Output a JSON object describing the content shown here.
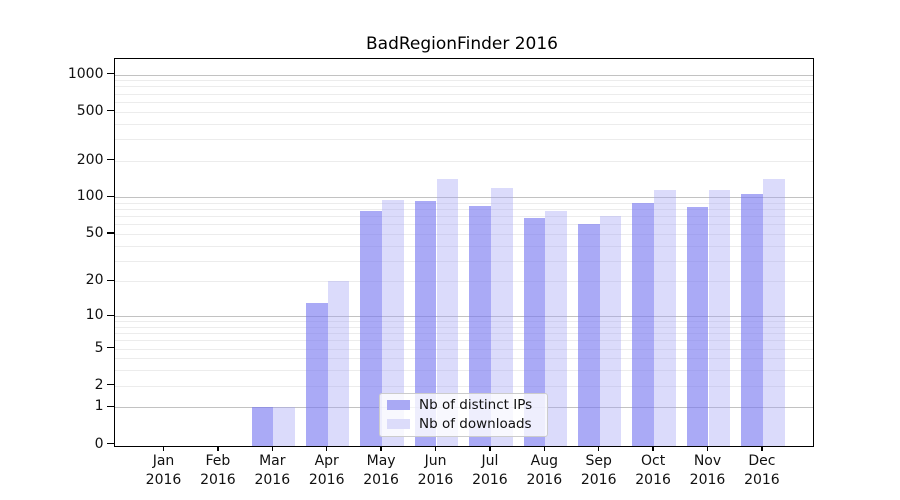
{
  "chart_data": {
    "type": "bar",
    "title": "BadRegionFinder 2016",
    "months": [
      "Jan",
      "Feb",
      "Mar",
      "Apr",
      "May",
      "Jun",
      "Jul",
      "Aug",
      "Sep",
      "Oct",
      "Nov",
      "Dec"
    ],
    "year": "2016",
    "series": [
      {
        "name": "Nb of distinct IPs",
        "fill_rgba": "rgba(120,120,240,0.63)",
        "swatch_hex": "#a9a9f4",
        "values": [
          0,
          0,
          1,
          13,
          78,
          93,
          85,
          68,
          60,
          90,
          84,
          107
        ]
      },
      {
        "name": "Nb of downloads",
        "fill_rgba": "rgba(160,160,245,0.38)",
        "swatch_hex": "#dcdcfa",
        "values": [
          0,
          0,
          1,
          20,
          95,
          142,
          120,
          78,
          70,
          115,
          115,
          142
        ]
      }
    ],
    "y_axis": {
      "scale": "log1p",
      "ticks": [
        "0",
        "1",
        "2",
        "5",
        "10",
        "20",
        "50",
        "100",
        "200",
        "500",
        "1000"
      ],
      "tick_values": [
        0,
        1,
        2,
        5,
        10,
        20,
        50,
        100,
        200,
        500,
        1000
      ],
      "major_grid_values": [
        1,
        10,
        100,
        1000
      ],
      "minor_grid_values": [
        2,
        3,
        4,
        5,
        6,
        7,
        8,
        9,
        20,
        30,
        40,
        50,
        60,
        70,
        80,
        90,
        200,
        300,
        400,
        500,
        600,
        700,
        800,
        900
      ],
      "ylim": [
        0,
        1340
      ],
      "grid": true
    },
    "legend": {
      "location": "lower center",
      "entries": [
        "Nb of distinct IPs",
        "Nb of downloads"
      ]
    },
    "xlabel": "",
    "ylabel": ""
  }
}
